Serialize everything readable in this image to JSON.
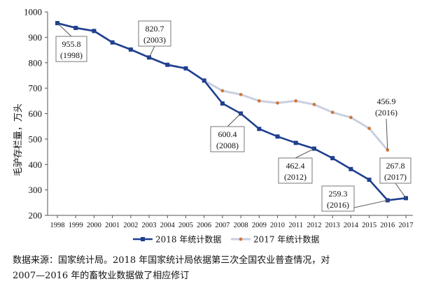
{
  "chart_data": {
    "type": "line",
    "ylabel": "毛驴存栏量，万头",
    "ylim": [
      200,
      1000
    ],
    "yticks": [
      200,
      300,
      400,
      500,
      600,
      700,
      800,
      900,
      1000
    ],
    "x": [
      "1998",
      "1999",
      "2000",
      "2001",
      "2002",
      "2003",
      "2004",
      "2005",
      "2006",
      "2007",
      "2008",
      "2009",
      "2010",
      "2011",
      "2012",
      "2013",
      "2014",
      "2015",
      "2016",
      "2017"
    ],
    "series": [
      {
        "name": "2018 年统计数据",
        "color": "#1f3f8f",
        "values": [
          955.8,
          937,
          925,
          880,
          852,
          820.7,
          792,
          778,
          730,
          640,
          600.4,
          540,
          510,
          485,
          462.4,
          425,
          382,
          340,
          259.3,
          267.8
        ]
      },
      {
        "name": "2017 年统计数据",
        "color": "#cf7a3a",
        "values": [
          955.8,
          937,
          925,
          880,
          852,
          820.7,
          792,
          778,
          730,
          690,
          675,
          650,
          642,
          650,
          636,
          605,
          585,
          542,
          456.9,
          null
        ]
      }
    ],
    "annotations": [
      {
        "value": "955.8",
        "year": "(1998)"
      },
      {
        "value": "820.7",
        "year": "(2003)"
      },
      {
        "value": "600.4",
        "year": "(2008)"
      },
      {
        "value": "462.4",
        "year": "(2012)"
      },
      {
        "value": "456.9",
        "year": "(2016)"
      },
      {
        "value": "259.3",
        "year": "(2016)"
      },
      {
        "value": "267.8",
        "year": "(2017)"
      }
    ],
    "legend_position": "bottom"
  },
  "caption": {
    "line1": "数据来源：国家统计局。2018 年国家统计局依据第三次全国农业普查情况，对",
    "line2": "2007—2016 年的畜牧业数据做了相应修订"
  }
}
